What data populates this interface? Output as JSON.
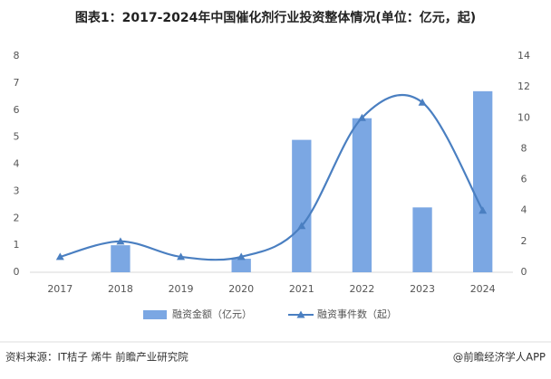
{
  "chart_data": {
    "type": "bar-line",
    "title": "图表1：2017-2024年中国催化剂行业投资整体情况(单位：亿元，起)",
    "categories": [
      "2017",
      "2018",
      "2019",
      "2020",
      "2021",
      "2022",
      "2023",
      "2024"
    ],
    "series": [
      {
        "name": "融资金额（亿元）",
        "color": "#7ba7e3",
        "type": "bar",
        "axis": "y",
        "values": [
          0,
          1,
          0,
          0.5,
          4.9,
          5.7,
          2.4,
          6.7
        ]
      },
      {
        "name": "融资事件数（起）",
        "color": "#4a7fc1",
        "type": "line",
        "axis": "y2",
        "smooth": true,
        "values": [
          1,
          2,
          1,
          1,
          3,
          10,
          11,
          4
        ]
      }
    ],
    "ylim": [
      0,
      8
    ],
    "yticks": [
      0,
      1,
      2,
      3,
      4,
      5,
      6,
      7,
      8
    ],
    "y2lim": [
      0,
      14
    ],
    "y2ticks": [
      0,
      2,
      4,
      6,
      8,
      10,
      12,
      14
    ],
    "grid": false,
    "legend": "bottom",
    "source": "资料来源：IT桔子 烯牛 前瞻产业研究院",
    "credit": "@前瞻经济学人APP"
  }
}
